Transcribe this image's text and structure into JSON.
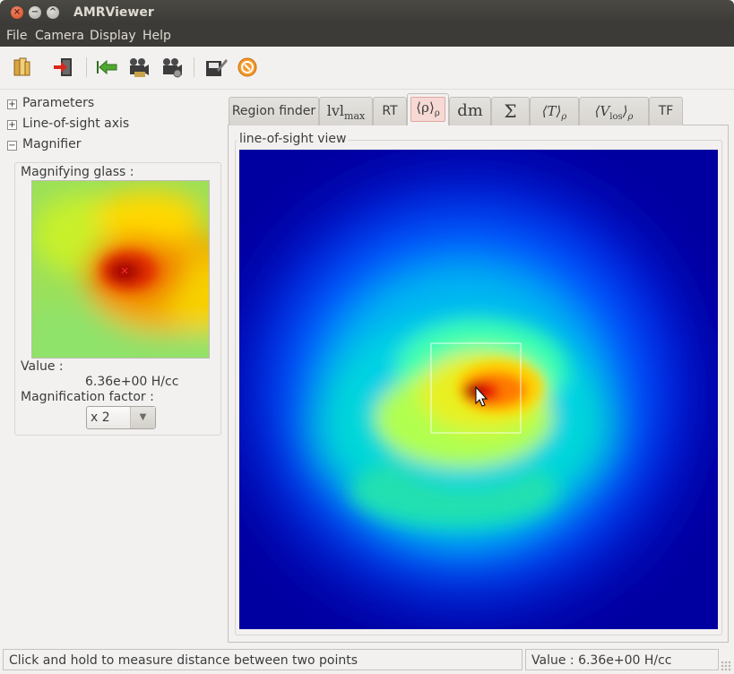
{
  "window": {
    "title": "AMRViewer"
  },
  "menubar": [
    "File",
    "Camera",
    "Display",
    "Help"
  ],
  "toolbar": {
    "icons": [
      "open-folder-icon",
      "exit-icon",
      "back-arrow-icon",
      "camera-icon",
      "camera-settings-icon",
      "save-icon",
      "close-circle-icon"
    ]
  },
  "sidebar": {
    "items": [
      {
        "label": "Parameters",
        "expander": "+"
      },
      {
        "label": "Line-of-sight axis",
        "expander": "+"
      },
      {
        "label": "Magnifier",
        "expander": "−"
      }
    ],
    "magnifier": {
      "glass_label": "Magnifying glass :",
      "value_label": "Value :",
      "value": "6.36e+00 H/cc",
      "factor_label": "Magnification factor :",
      "factor_selected": "x 2"
    }
  },
  "tabs": [
    {
      "label": "Region finder"
    },
    {
      "label": "lvl",
      "sub": "max"
    },
    {
      "label": "RT"
    },
    {
      "label": "⟨ρ⟩",
      "sub": "ρ",
      "active": true
    },
    {
      "label": "dm"
    },
    {
      "label": "Σ"
    },
    {
      "label": "⟨T⟩",
      "sub": "ρ"
    },
    {
      "label": "⟨V",
      "sub2": "los",
      "tail": "⟩",
      "sub": "ρ"
    },
    {
      "label": "TF"
    }
  ],
  "view": {
    "group_title": "line-of-sight view"
  },
  "status": {
    "message": "Click and hold to measure distance between two points",
    "value": "Value : 6.36e+00 H/cc"
  },
  "colors": {
    "titlebar": "#3c3b37",
    "window_bg": "#f2f1f0",
    "active_tab": "#f6d9d4",
    "field_low": "#0000a8",
    "field_high": "#c00000"
  }
}
